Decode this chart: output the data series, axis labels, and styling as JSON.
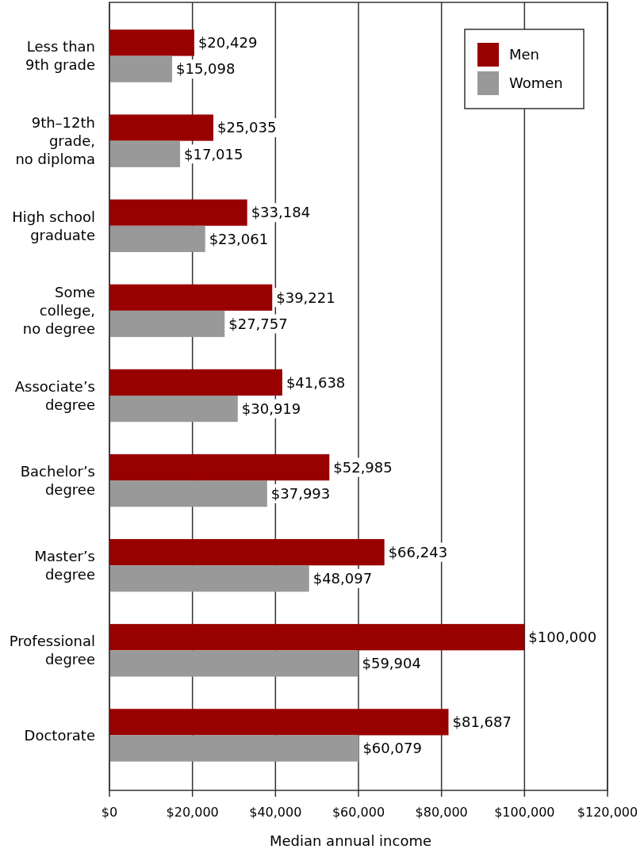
{
  "chart_data": {
    "type": "bar",
    "orientation": "horizontal",
    "xlabel": "Median annual income",
    "categories": [
      "Less than\n9th grade",
      "9th–12th\ngrade,\nno diploma",
      "High school\ngraduate",
      "Some\ncollege,\nno degree",
      "Associate’s\ndegree",
      "Bachelor’s\ndegree",
      "Master’s\ndegree",
      "Professional\ndegree",
      "Doctorate"
    ],
    "series": [
      {
        "name": "Men",
        "color": "#990000",
        "values": [
          20429,
          25035,
          33184,
          39221,
          41638,
          52985,
          66243,
          100000,
          81687
        ],
        "value_labels": [
          "$20,429",
          "$25,035",
          "$33,184",
          "$39,221",
          "$41,638",
          "$52,985",
          "$66,243",
          "$100,000",
          "$81,687"
        ]
      },
      {
        "name": "Women",
        "color": "#999999",
        "values": [
          15098,
          17015,
          23061,
          27757,
          30919,
          37993,
          48097,
          59904,
          60079
        ],
        "value_labels": [
          "$15,098",
          "$17,015",
          "$23,061",
          "$27,757",
          "$30,919",
          "$37,993",
          "$48,097",
          "$59,904",
          "$60,079"
        ]
      }
    ],
    "xlim": [
      0,
      120000
    ],
    "xticks": [
      {
        "value": 0,
        "label": "$0"
      },
      {
        "value": 20000,
        "label": "$20,000"
      },
      {
        "value": 40000,
        "label": "$40,000"
      },
      {
        "value": 60000,
        "label": "$60,000"
      },
      {
        "value": 80000,
        "label": "$80,000"
      },
      {
        "value": 100000,
        "label": "$100,000"
      },
      {
        "value": 120000,
        "label": "$120,000"
      }
    ],
    "grid": "x",
    "legend": "top right"
  }
}
